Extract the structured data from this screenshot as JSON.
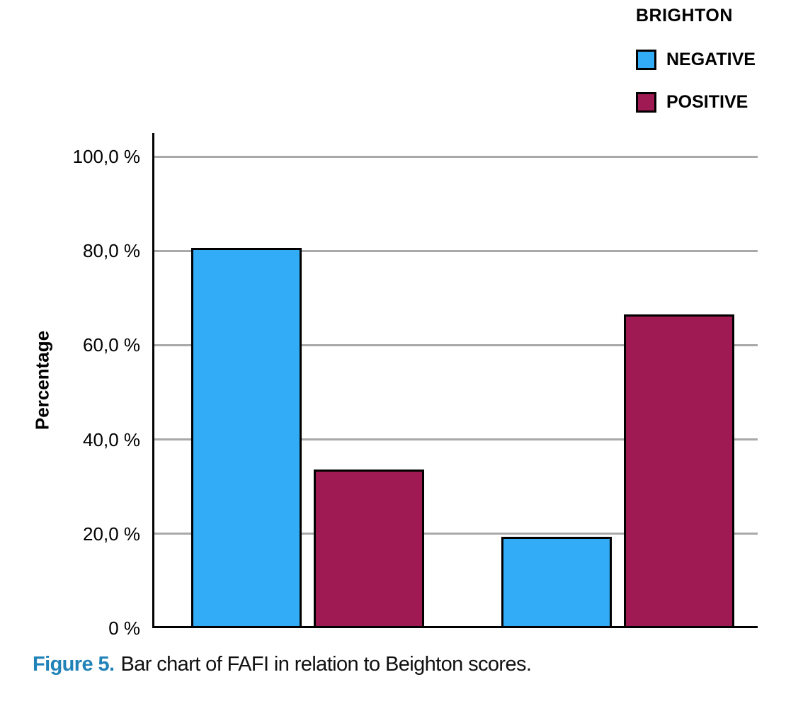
{
  "figure": {
    "caption": {
      "prefix": "Figure 5.",
      "text": "Bar chart of FAFI in relation to Beighton scores.",
      "prefix_color": "#2182B8"
    }
  },
  "chart_data": {
    "type": "bar",
    "title": "",
    "xlabel": "",
    "ylabel": "Percentage",
    "ylim": [
      0,
      100
    ],
    "grid": true,
    "gridline_color": "#A9A9A9",
    "axis_color": "#000000",
    "bar_border_color": "#000000",
    "value_unit": "%",
    "yticks": [
      {
        "value": 0,
        "label": "0 %"
      },
      {
        "value": 20,
        "label": "20,0 %"
      },
      {
        "value": 40,
        "label": "40,0 %"
      },
      {
        "value": 60,
        "label": "60,0 %"
      },
      {
        "value": 80,
        "label": "80,0 %"
      },
      {
        "value": 100,
        "label": "100,0 %"
      }
    ],
    "legend": {
      "title": "BRIGHTON",
      "position": "top-right",
      "entries": [
        {
          "label": "NEGATIVE",
          "color": "#33ACF7"
        },
        {
          "label": "POSITIVE",
          "color": "#9F1A52"
        }
      ]
    },
    "categories": [
      "",
      ""
    ],
    "series": [
      {
        "name": "NEGATIVE",
        "color": "#33ACF7",
        "values": [
          80.7,
          19.3
        ]
      },
      {
        "name": "POSITIVE",
        "color": "#9F1A52",
        "values": [
          33.6,
          66.5
        ]
      }
    ]
  }
}
